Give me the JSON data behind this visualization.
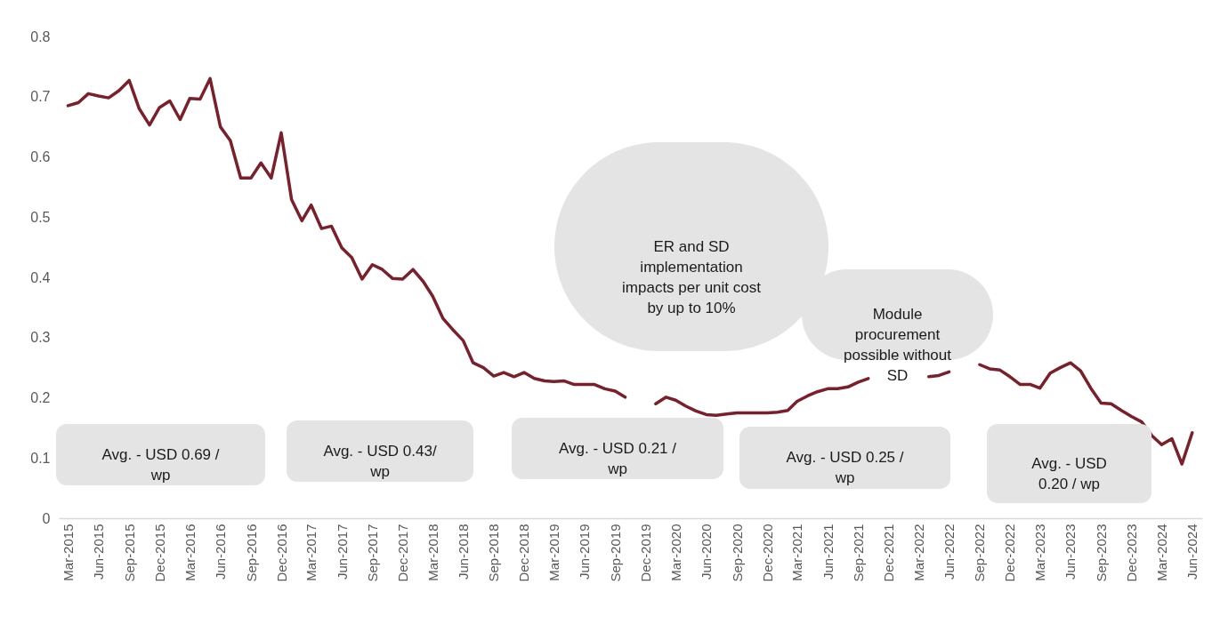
{
  "chart_data": {
    "type": "line",
    "x": [
      "2015-03",
      "2015-04",
      "2015-05",
      "2015-06",
      "2015-07",
      "2015-08",
      "2015-09",
      "2015-10",
      "2015-11",
      "2015-12",
      "2016-01",
      "2016-02",
      "2016-03",
      "2016-04",
      "2016-05",
      "2016-06",
      "2016-07",
      "2016-08",
      "2016-09",
      "2016-10",
      "2016-11",
      "2016-12",
      "2017-01",
      "2017-02",
      "2017-03",
      "2017-04",
      "2017-05",
      "2017-06",
      "2017-07",
      "2017-08",
      "2017-09",
      "2017-10",
      "2017-11",
      "2017-12",
      "2018-01",
      "2018-02",
      "2018-03",
      "2018-04",
      "2018-05",
      "2018-06",
      "2018-07",
      "2018-08",
      "2018-09",
      "2018-10",
      "2018-11",
      "2018-12",
      "2019-01",
      "2019-02",
      "2019-03",
      "2019-04",
      "2019-05",
      "2019-06",
      "2019-07",
      "2019-08",
      "2019-09",
      "2019-10",
      "2019-11",
      "2019-12",
      "2020-01",
      "2020-02",
      "2020-03",
      "2020-04",
      "2020-05",
      "2020-06",
      "2020-07",
      "2020-08",
      "2020-09",
      "2020-10",
      "2020-11",
      "2020-12",
      "2021-01",
      "2021-02",
      "2021-03",
      "2021-04",
      "2021-05",
      "2021-06",
      "2021-07",
      "2021-08",
      "2021-09",
      "2021-10",
      "2021-11",
      "2021-12",
      "2022-01",
      "2022-02",
      "2022-03",
      "2022-04",
      "2022-05",
      "2022-06",
      "2022-07",
      "2022-08",
      "2022-09",
      "2022-10",
      "2022-11",
      "2022-12",
      "2023-01",
      "2023-02",
      "2023-03",
      "2023-04",
      "2023-05",
      "2023-06",
      "2023-07",
      "2023-08",
      "2023-09",
      "2023-10",
      "2023-11",
      "2023-12",
      "2024-01",
      "2024-02",
      "2024-03",
      "2024-04",
      "2024-05",
      "2024-06"
    ],
    "series": [
      {
        "color": "#7b1f2b",
        "values": [
          0.685,
          0.69,
          0.705,
          0.701,
          0.698,
          0.71,
          0.727,
          0.68,
          0.653,
          0.682,
          0.693,
          0.662,
          0.697,
          0.696,
          0.73,
          0.65,
          0.627,
          0.565,
          0.565,
          0.59,
          0.565,
          0.64,
          0.529,
          0.494,
          0.52,
          0.481,
          0.485,
          0.449,
          0.433,
          0.397,
          0.421,
          0.413,
          0.398,
          0.397,
          0.413,
          0.393,
          0.369,
          0.332,
          0.313,
          0.295,
          0.258,
          0.25,
          0.236,
          0.242,
          0.235,
          0.242,
          0.232,
          0.228,
          0.227,
          0.228,
          0.222,
          0.222,
          0.222,
          0.215,
          0.211,
          0.201,
          null,
          null,
          0.19,
          0.201,
          0.196,
          0.186,
          0.178,
          0.172,
          0.171,
          0.173,
          0.175,
          0.175,
          0.175,
          0.175,
          0.176,
          0.179,
          0.194,
          0.203,
          0.21,
          0.215,
          0.215,
          0.218,
          0.226,
          0.232,
          null,
          null,
          null,
          null,
          null,
          0.235,
          0.237,
          0.243,
          null,
          null,
          0.255,
          0.248,
          0.246,
          0.235,
          0.222,
          0.222,
          0.216,
          0.241,
          0.25,
          0.258,
          0.245,
          0.216,
          0.191,
          0.19,
          0.179,
          0.169,
          0.16,
          0.137,
          0.122,
          0.132,
          0.09,
          0.142
        ]
      }
    ],
    "xlim": [
      "2015-02",
      "2024-07"
    ],
    "xticks": [
      {
        "value": "2015-03",
        "label": "Mar-2015"
      },
      {
        "value": "2015-06",
        "label": "Jun-2015"
      },
      {
        "value": "2015-09",
        "label": "Sep-2015"
      },
      {
        "value": "2015-12",
        "label": "Dec-2015"
      },
      {
        "value": "2016-03",
        "label": "Mar-2016"
      },
      {
        "value": "2016-06",
        "label": "Jun-2016"
      },
      {
        "value": "2016-09",
        "label": "Sep-2016"
      },
      {
        "value": "2016-12",
        "label": "Dec-2016"
      },
      {
        "value": "2017-03",
        "label": "Mar-2017"
      },
      {
        "value": "2017-06",
        "label": "Jun-2017"
      },
      {
        "value": "2017-09",
        "label": "Sep-2017"
      },
      {
        "value": "2017-12",
        "label": "Dec-2017"
      },
      {
        "value": "2018-03",
        "label": "Mar-2018"
      },
      {
        "value": "2018-06",
        "label": "Jun-2018"
      },
      {
        "value": "2018-09",
        "label": "Sep-2018"
      },
      {
        "value": "2018-12",
        "label": "Dec-2018"
      },
      {
        "value": "2019-03",
        "label": "Mar-2019"
      },
      {
        "value": "2019-06",
        "label": "Jun-2019"
      },
      {
        "value": "2019-09",
        "label": "Sep-2019"
      },
      {
        "value": "2019-12",
        "label": "Dec-2019"
      },
      {
        "value": "2020-03",
        "label": "Mar-2020"
      },
      {
        "value": "2020-06",
        "label": "Jun-2020"
      },
      {
        "value": "2020-09",
        "label": "Sep-2020"
      },
      {
        "value": "2020-12",
        "label": "Dec-2020"
      },
      {
        "value": "2021-03",
        "label": "Mar-2021"
      },
      {
        "value": "2021-06",
        "label": "Jun-2021"
      },
      {
        "value": "2021-09",
        "label": "Sep-2021"
      },
      {
        "value": "2021-12",
        "label": "Dec-2021"
      },
      {
        "value": "2022-03",
        "label": "Mar-2022"
      },
      {
        "value": "2022-06",
        "label": "Jun-2022"
      },
      {
        "value": "2022-09",
        "label": "Sep-2022"
      },
      {
        "value": "2022-12",
        "label": "Dec-2022"
      },
      {
        "value": "2023-03",
        "label": "Mar-2023"
      },
      {
        "value": "2023-06",
        "label": "Jun-2023"
      },
      {
        "value": "2023-09",
        "label": "Sep-2023"
      },
      {
        "value": "2023-12",
        "label": "Dec-2023"
      },
      {
        "value": "2024-03",
        "label": "Mar-2024"
      },
      {
        "value": "2024-06",
        "label": "Jun-2024"
      }
    ],
    "ylim": [
      0,
      0.8
    ],
    "yticks": [
      0,
      0.1,
      0.2,
      0.3,
      0.4,
      0.5,
      0.6,
      0.7,
      0.8
    ],
    "grid": false,
    "marker": "none",
    "line_style": "solid",
    "annotations": [
      "Avg. - USD 0.69 / wp",
      "Avg. - USD 0.43/ wp",
      "Avg. - USD 0.21 / wp",
      "Avg. - USD 0.25 / wp",
      "Avg. - USD 0.20 / wp",
      "ER and SD implementation impacts per unit cost by up to 10%",
      "Module procurement possible without SD"
    ]
  }
}
